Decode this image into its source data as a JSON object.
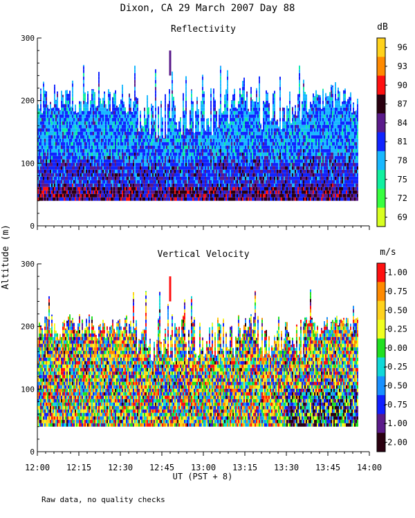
{
  "page": {
    "title": "Dixon, CA 29 March 2007  Day  88",
    "shared_ylabel": "Altitude (m)",
    "xlabel": "UT  (PST + 8)",
    "footnote": "Raw data, no quality checks"
  },
  "chart_data": [
    {
      "type": "heatmap",
      "title": "Reflectivity",
      "xlabel": "UT  (PST + 8)",
      "ylabel": "Altitude (m)",
      "x_ticks": [
        "12:00",
        "12:15",
        "12:30",
        "12:45",
        "13:00",
        "13:15",
        "13:30",
        "13:45",
        "14:00"
      ],
      "x_range_minutes_after_1200": [
        0,
        120
      ],
      "y_ticks": [
        "0",
        "100",
        "200",
        "300"
      ],
      "ylim": [
        0,
        300
      ],
      "colorbar": {
        "unit": "dB",
        "labels": [
          "96",
          "93",
          "90",
          "87",
          "84",
          "81",
          "78",
          "75",
          "72",
          "69"
        ],
        "colors": [
          "#ffd21c",
          "#ff8a00",
          "#ff1010",
          "#2a0010",
          "#5a1a8a",
          "#1024ff",
          "#18b8ff",
          "#10f0a0",
          "#38ff40",
          "#d8ff20"
        ]
      },
      "echo_extent": {
        "base_altitude_m": 40,
        "typical_top_m": 220,
        "max_top_m": 260
      },
      "dominant_levels_dB": {
        "near_surface": [
          84,
          87,
          90
        ],
        "mid_column": [
          78,
          81
        ],
        "upper": [
          75,
          78,
          81
        ]
      },
      "isolated_echo": {
        "time": "12:48",
        "altitude_range_m": [
          240,
          280
        ]
      }
    },
    {
      "type": "heatmap",
      "title": "Vertical Velocity",
      "xlabel": "UT  (PST + 8)",
      "ylabel": "Altitude (m)",
      "x_ticks": [
        "12:00",
        "12:15",
        "12:30",
        "12:45",
        "13:00",
        "13:15",
        "13:30",
        "13:45",
        "14:00"
      ],
      "x_range_minutes_after_1200": [
        0,
        120
      ],
      "y_ticks": [
        "0",
        "100",
        "200",
        "300"
      ],
      "ylim": [
        0,
        300
      ],
      "colorbar": {
        "unit": "m/s",
        "labels": [
          "1.00",
          "0.75",
          "0.50",
          "0.25",
          "0.00",
          "-0.25",
          "-0.50",
          "-0.75",
          "-1.00",
          "-2.00"
        ],
        "colors": [
          "#ff1010",
          "#ff8a00",
          "#ffd21c",
          "#f0ff20",
          "#20e020",
          "#10d8d8",
          "#1890ff",
          "#1020ff",
          "#5a1a8a",
          "#2a0010"
        ]
      },
      "echo_extent": {
        "base_altitude_m": 40,
        "typical_top_m": 220,
        "max_top_m": 260
      },
      "isolated_echo": {
        "time": "12:48",
        "altitude_range_m": [
          240,
          280
        ]
      }
    }
  ]
}
